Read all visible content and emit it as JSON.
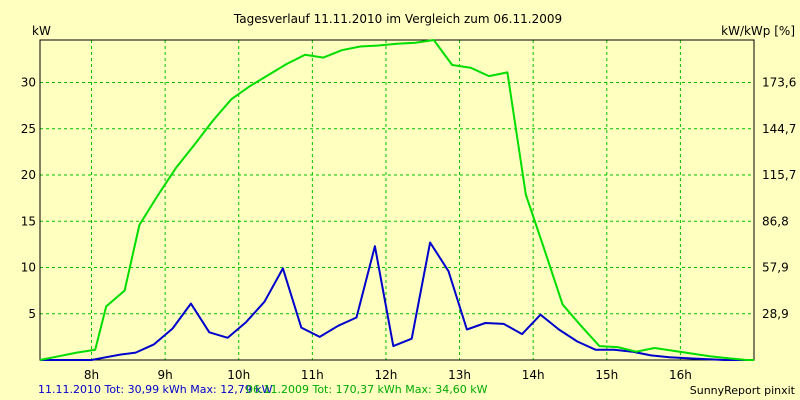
{
  "chart_data": {
    "type": "line",
    "title": "Tagesverlauf 11.11.2010 im Vergleich zum 06.11.2009",
    "ylabel_left": "kW",
    "ylabel_right": "kW/kWp [%]",
    "xlim": [
      7.3,
      17.0
    ],
    "ylim": [
      0,
      34.6
    ],
    "x_ticks": [
      8,
      9,
      10,
      11,
      12,
      13,
      14,
      15,
      16
    ],
    "x_tick_labels": [
      "8h",
      "9h",
      "10h",
      "11h",
      "12h",
      "13h",
      "14h",
      "15h",
      "16h"
    ],
    "y_ticks_left": [
      5,
      10,
      15,
      20,
      25,
      30
    ],
    "y_ticks_right": [
      28.9,
      57.9,
      86.8,
      115.7,
      144.7,
      173.6
    ],
    "grid": true,
    "background": "#ffffc0",
    "series": [
      {
        "name": "11.11.2010",
        "color": "#0000cc",
        "x": [
          7.3,
          7.6,
          7.8,
          8.0,
          8.2,
          8.4,
          8.6,
          8.85,
          9.1,
          9.35,
          9.6,
          9.85,
          10.1,
          10.35,
          10.6,
          10.85,
          11.1,
          11.35,
          11.6,
          11.85,
          12.1,
          12.35,
          12.6,
          12.85,
          13.1,
          13.35,
          13.6,
          13.85,
          14.1,
          14.35,
          14.6,
          14.85,
          15.1,
          15.35,
          15.6,
          15.85,
          16.1,
          16.35,
          16.6,
          16.85,
          17.0
        ],
        "y": [
          0,
          0,
          0,
          0,
          0.3,
          0.6,
          0.8,
          1.7,
          3.4,
          6.1,
          3.0,
          2.4,
          4.1,
          6.3,
          9.9,
          3.5,
          2.5,
          3.7,
          4.6,
          12.3,
          1.5,
          2.3,
          12.7,
          9.6,
          3.3,
          4.0,
          3.9,
          2.8,
          4.9,
          3.3,
          2.0,
          1.1,
          1.1,
          0.9,
          0.5,
          0.3,
          0.2,
          0.1,
          0,
          0,
          0
        ]
      },
      {
        "name": "06.11.2009",
        "color": "#00dd00",
        "x": [
          7.3,
          7.55,
          7.8,
          8.05,
          8.2,
          8.45,
          8.65,
          8.9,
          9.15,
          9.4,
          9.65,
          9.9,
          10.15,
          10.4,
          10.65,
          10.9,
          11.15,
          11.4,
          11.65,
          11.9,
          12.15,
          12.4,
          12.65,
          12.9,
          13.15,
          13.4,
          13.65,
          13.9,
          14.15,
          14.4,
          14.65,
          14.9,
          15.15,
          15.4,
          15.65,
          15.9,
          16.15,
          16.4,
          16.65,
          16.9,
          17.0
        ],
        "y": [
          0,
          0.4,
          0.8,
          1.1,
          5.8,
          7.5,
          14.6,
          17.8,
          20.8,
          23.3,
          25.9,
          28.2,
          29.6,
          30.8,
          32.0,
          33.0,
          32.7,
          33.5,
          33.9,
          34.0,
          34.2,
          34.3,
          34.6,
          31.9,
          31.6,
          30.7,
          31.1,
          17.9,
          12.0,
          6.0,
          3.7,
          1.5,
          1.4,
          0.9,
          1.3,
          1.0,
          0.7,
          0.4,
          0.2,
          0,
          0
        ]
      }
    ]
  },
  "footer": {
    "series1_text": "11.11.2010 Tot: 30,99 kWh Max: 12,79 kW",
    "series2_text": "06.11.2009 Tot: 170,37 kWh Max: 34,60 kW",
    "brand_text": "SunnyReport pinxit"
  }
}
